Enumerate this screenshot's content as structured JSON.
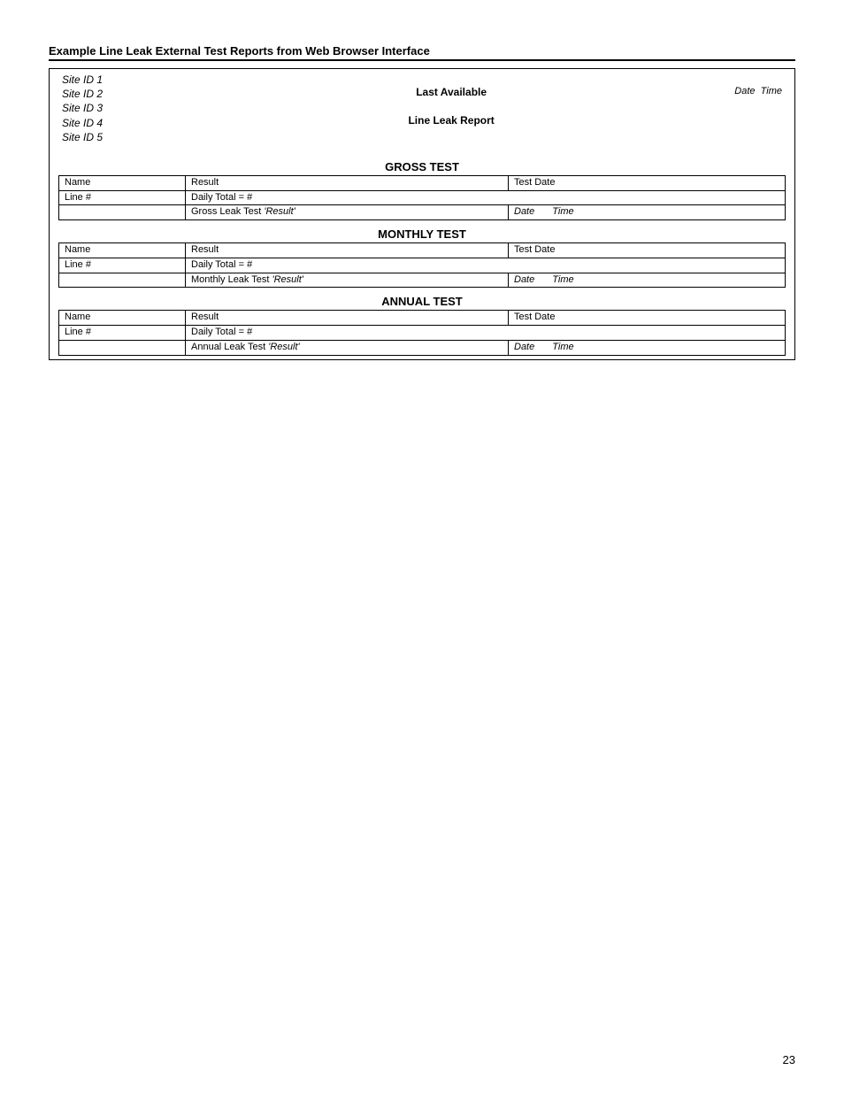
{
  "title": "Example Line Leak External Test Reports from Web Browser Interface",
  "header": {
    "site_ids": [
      "Site ID 1",
      "Site ID 2",
      "Site ID 3",
      "Site ID 4",
      "Site ID 5"
    ],
    "center_line1": "Last Available",
    "center_line2": "Line Leak Report",
    "date_label": "Date",
    "time_label": "Time"
  },
  "sections": [
    {
      "title": "GROSS TEST",
      "rows": {
        "r1c1": "Name",
        "r1c2": "Result",
        "r1c3": "Test Date",
        "r2c1": "Line #",
        "r2c2": "Daily Total = #",
        "r3c2_plain": "Gross Leak Test ",
        "r3c2_italic": "'Result'",
        "r3c3_date": "Date",
        "r3c3_time": "Time"
      }
    },
    {
      "title": "MONTHLY TEST",
      "rows": {
        "r1c1": "Name",
        "r1c2": "Result",
        "r1c3": "Test Date",
        "r2c1": "Line #",
        "r2c2": "Daily Total = #",
        "r3c2_plain": "Monthly Leak Test ",
        "r3c2_italic": "'Result'",
        "r3c3_date": "Date",
        "r3c3_time": "Time"
      }
    },
    {
      "title": "ANNUAL TEST",
      "rows": {
        "r1c1": "Name",
        "r1c2": "Result",
        "r1c3": "Test Date",
        "r2c1": "Line #",
        "r2c2": "Daily Total = #",
        "r3c2_plain": "Annual Leak Test ",
        "r3c2_italic": "'Result'",
        "r3c3_date": "Date",
        "r3c3_time": "Time"
      }
    }
  ],
  "page_number": "23"
}
